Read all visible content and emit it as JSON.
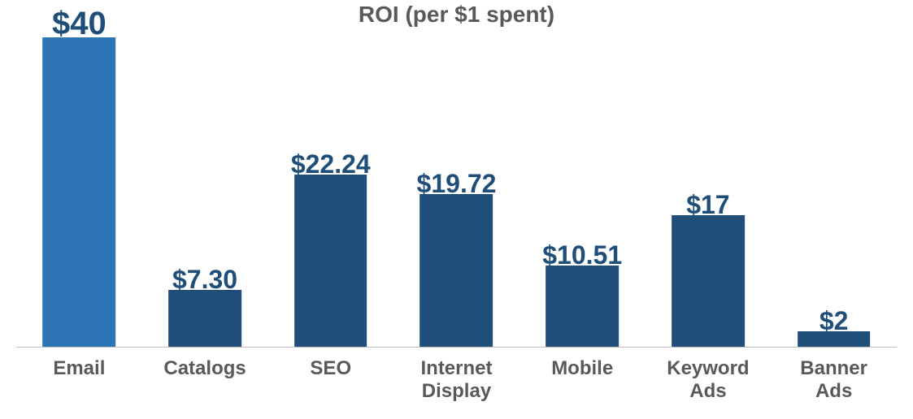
{
  "chart": {
    "type": "bar",
    "title": "ROI (per $1 spent)",
    "title_color": "#595959",
    "title_fontsize": 28,
    "title_fontweight": "bold",
    "background_color": "#ffffff",
    "axis_line_color": "#bfbfbf",
    "y_max": 40,
    "bar_width_ratio": 0.58,
    "value_prefix": "$",
    "value_label_color": "#1f4e79",
    "value_label_fontsize": 32,
    "value_label_fontweight": "bold",
    "x_label_color": "#595959",
    "x_label_fontsize": 24,
    "x_label_fontweight": "bold",
    "bars": [
      {
        "category": "Email",
        "value": 40,
        "display": "$40",
        "color": "#2e75b6",
        "highlight": true,
        "label_fontsize": 40
      },
      {
        "category": "Catalogs",
        "value": 7.3,
        "display": "$7.30",
        "color": "#1f4e79",
        "highlight": false,
        "label_fontsize": 32
      },
      {
        "category": "SEO",
        "value": 22.24,
        "display": "$22.24",
        "color": "#1f4e79",
        "highlight": false,
        "label_fontsize": 32
      },
      {
        "category": "Internet Display",
        "value": 19.72,
        "display": "$19.72",
        "color": "#1f4e79",
        "highlight": false,
        "label_fontsize": 32
      },
      {
        "category": "Mobile",
        "value": 10.51,
        "display": "$10.51",
        "color": "#1f4e79",
        "highlight": false,
        "label_fontsize": 32
      },
      {
        "category": "Keyword Ads",
        "value": 17,
        "display": "$17",
        "color": "#1f4e79",
        "highlight": false,
        "label_fontsize": 32
      },
      {
        "category": "Banner Ads",
        "value": 2,
        "display": "$2",
        "color": "#1f4e79",
        "highlight": false,
        "label_fontsize": 32
      }
    ]
  }
}
